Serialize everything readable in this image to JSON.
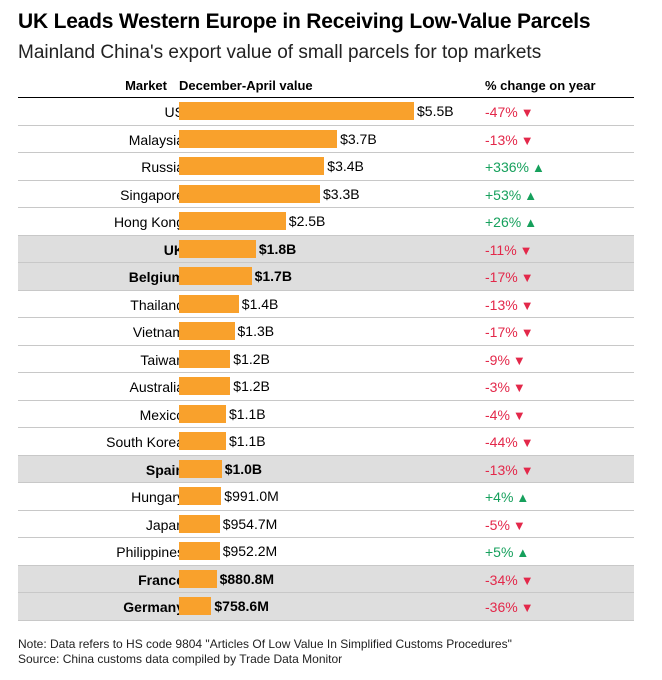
{
  "chart_data": {
    "type": "bar",
    "title": "UK Leads Western Europe in Receiving Low-Value Parcels",
    "subtitle": "Mainland China's export value of small parcels for top markets",
    "columns": {
      "market": "Market",
      "value": "December-April value",
      "change": "% change on year"
    },
    "unit": "USD millions",
    "rows": [
      {
        "market": "US",
        "value": 5500,
        "label": "$5.5B",
        "change": "-47%",
        "direction": "down",
        "highlight": false
      },
      {
        "market": "Malaysia",
        "value": 3700,
        "label": "$3.7B",
        "change": "-13%",
        "direction": "down",
        "highlight": false
      },
      {
        "market": "Russia",
        "value": 3400,
        "label": "$3.4B",
        "change": "+336%",
        "direction": "up",
        "highlight": false
      },
      {
        "market": "Singapore",
        "value": 3300,
        "label": "$3.3B",
        "change": "+53%",
        "direction": "up",
        "highlight": false
      },
      {
        "market": "Hong Kong",
        "value": 2500,
        "label": "$2.5B",
        "change": "+26%",
        "direction": "up",
        "highlight": false
      },
      {
        "market": "UK",
        "value": 1800,
        "label": "$1.8B",
        "change": "-11%",
        "direction": "down",
        "highlight": true
      },
      {
        "market": "Belgium",
        "value": 1700,
        "label": "$1.7B",
        "change": "-17%",
        "direction": "down",
        "highlight": true
      },
      {
        "market": "Thailand",
        "value": 1400,
        "label": "$1.4B",
        "change": "-13%",
        "direction": "down",
        "highlight": false
      },
      {
        "market": "Vietnam",
        "value": 1300,
        "label": "$1.3B",
        "change": "-17%",
        "direction": "down",
        "highlight": false
      },
      {
        "market": "Taiwan",
        "value": 1200,
        "label": "$1.2B",
        "change": "-9%",
        "direction": "down",
        "highlight": false
      },
      {
        "market": "Australia",
        "value": 1200,
        "label": "$1.2B",
        "change": "-3%",
        "direction": "down",
        "highlight": false
      },
      {
        "market": "Mexico",
        "value": 1100,
        "label": "$1.1B",
        "change": "-4%",
        "direction": "down",
        "highlight": false
      },
      {
        "market": "South Korea",
        "value": 1100,
        "label": "$1.1B",
        "change": "-44%",
        "direction": "down",
        "highlight": false
      },
      {
        "market": "Spain",
        "value": 1000,
        "label": "$1.0B",
        "change": "-13%",
        "direction": "down",
        "highlight": true
      },
      {
        "market": "Hungary",
        "value": 991.0,
        "label": "$991.0M",
        "change": "+4%",
        "direction": "up",
        "highlight": false
      },
      {
        "market": "Japan",
        "value": 954.7,
        "label": "$954.7M",
        "change": "-5%",
        "direction": "down",
        "highlight": false
      },
      {
        "market": "Philippines",
        "value": 952.2,
        "label": "$952.2M",
        "change": "+5%",
        "direction": "up",
        "highlight": false
      },
      {
        "market": "France",
        "value": 880.8,
        "label": "$880.8M",
        "change": "-34%",
        "direction": "down",
        "highlight": true
      },
      {
        "market": "Germany",
        "value": 758.6,
        "label": "$758.6M",
        "change": "-36%",
        "direction": "down",
        "highlight": true
      }
    ],
    "colors": {
      "bar": "#f9a12c",
      "negative": "#e3284a",
      "positive": "#16a05c",
      "highlight_row": "#dedede"
    }
  },
  "notes": {
    "note": "Note: Data refers to HS code 9804 \"Articles Of Low Value In Simplified Customs Procedures\"",
    "source": "Source: China customs data compiled by Trade Data Monitor"
  }
}
